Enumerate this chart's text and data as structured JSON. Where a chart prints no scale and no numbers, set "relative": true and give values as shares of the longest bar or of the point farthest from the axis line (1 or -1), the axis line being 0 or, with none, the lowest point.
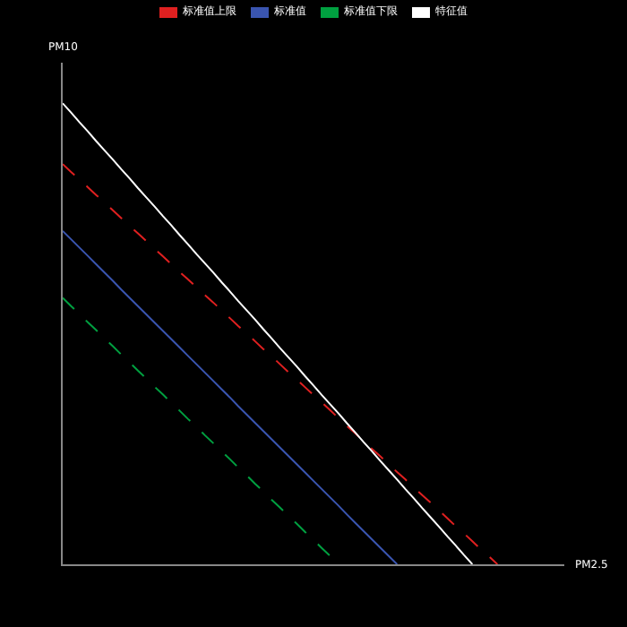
{
  "chart_data": {
    "type": "line",
    "relative": true,
    "xlabel": "PM2.5",
    "ylabel": "PM10",
    "legend": "top",
    "categories": [
      null,
      null,
      null,
      null,
      null,
      null,
      null,
      null,
      null,
      null,
      null,
      null,
      null,
      null,
      null,
      null,
      null,
      null,
      null,
      null,
      null,
      null,
      null,
      null,
      null,
      null,
      null,
      null,
      null,
      null,
      null,
      null,
      null,
      null,
      null,
      null,
      null,
      null,
      null,
      null,
      null,
      null,
      null,
      null,
      null,
      null,
      null,
      null,
      null,
      null,
      null,
      null,
      null,
      null,
      null,
      null,
      null,
      null,
      null,
      null,
      null
    ],
    "series": [
      {
        "name": "标准值上限",
        "color": "#e02020",
        "line_style": "dashed",
        "values": [
          0.868,
          0.851,
          0.835,
          0.818,
          0.801,
          0.785,
          0.768,
          0.751,
          0.734,
          0.718,
          0.701,
          0.684,
          0.668,
          0.651,
          0.634,
          0.618,
          0.601,
          0.584,
          0.568,
          0.551,
          0.534,
          0.517,
          0.501,
          0.484,
          0.467,
          0.451,
          0.434,
          0.417,
          0.401,
          0.384,
          0.367,
          0.351,
          0.334,
          0.317,
          0.3,
          0.284,
          0.267,
          0.25,
          0.234,
          0.217,
          0.2,
          0.184,
          0.167,
          0.15,
          0.134,
          0.117,
          0.1,
          0.083,
          0.067,
          0.05,
          0.033,
          0.017,
          0,
          null,
          null,
          null,
          null,
          null,
          null,
          null,
          null
        ]
      },
      {
        "name": "标准值",
        "color": "#3a55b0",
        "line_style": "solid",
        "values": [
          0.723,
          0.705,
          0.687,
          0.669,
          0.651,
          0.633,
          0.615,
          0.596,
          0.578,
          0.56,
          0.542,
          0.524,
          0.506,
          0.488,
          0.47,
          0.452,
          0.434,
          0.416,
          0.398,
          0.38,
          0.362,
          0.343,
          0.325,
          0.307,
          0.289,
          0.271,
          0.253,
          0.235,
          0.217,
          0.199,
          0.181,
          0.163,
          0.145,
          0.127,
          0.108,
          0.09,
          0.072,
          0.054,
          0.036,
          0.018,
          0,
          null,
          null,
          null,
          null,
          null,
          null,
          null,
          null,
          null,
          null,
          null,
          null,
          null,
          null,
          null,
          null,
          null,
          null,
          null,
          null
        ]
      },
      {
        "name": "标准值下限",
        "color": "#00a040",
        "line_style": "dashed",
        "values": [
          0.578,
          0.56,
          0.543,
          0.525,
          0.508,
          0.49,
          0.473,
          0.455,
          0.438,
          0.42,
          0.403,
          0.385,
          0.368,
          0.35,
          0.333,
          0.315,
          0.298,
          0.28,
          0.263,
          0.245,
          0.228,
          0.21,
          0.193,
          0.175,
          0.158,
          0.14,
          0.123,
          0.105,
          0.088,
          0.07,
          0.053,
          0.035,
          0.018,
          0,
          null,
          null,
          null,
          null,
          null,
          null,
          null,
          null,
          null,
          null,
          null,
          null,
          null,
          null,
          null,
          null,
          null,
          null,
          null,
          null,
          null,
          null,
          null,
          null,
          null,
          null,
          null
        ]
      },
      {
        "name": "特征值",
        "color": "#ffffff",
        "line_style": "solid",
        "values": [
          1,
          0.98,
          0.959,
          0.939,
          0.918,
          0.898,
          0.878,
          0.857,
          0.837,
          0.816,
          0.796,
          0.776,
          0.755,
          0.735,
          0.714,
          0.694,
          0.673,
          0.653,
          0.633,
          0.612,
          0.592,
          0.571,
          0.551,
          0.531,
          0.51,
          0.49,
          0.469,
          0.449,
          0.429,
          0.408,
          0.388,
          0.367,
          0.347,
          0.327,
          0.306,
          0.286,
          0.265,
          0.245,
          0.224,
          0.204,
          0.184,
          0.163,
          0.143,
          0.122,
          0.102,
          0.082,
          0.061,
          0.041,
          0.02,
          0,
          null,
          null,
          null,
          null,
          null,
          null,
          null,
          null,
          null,
          null,
          null
        ]
      }
    ]
  }
}
